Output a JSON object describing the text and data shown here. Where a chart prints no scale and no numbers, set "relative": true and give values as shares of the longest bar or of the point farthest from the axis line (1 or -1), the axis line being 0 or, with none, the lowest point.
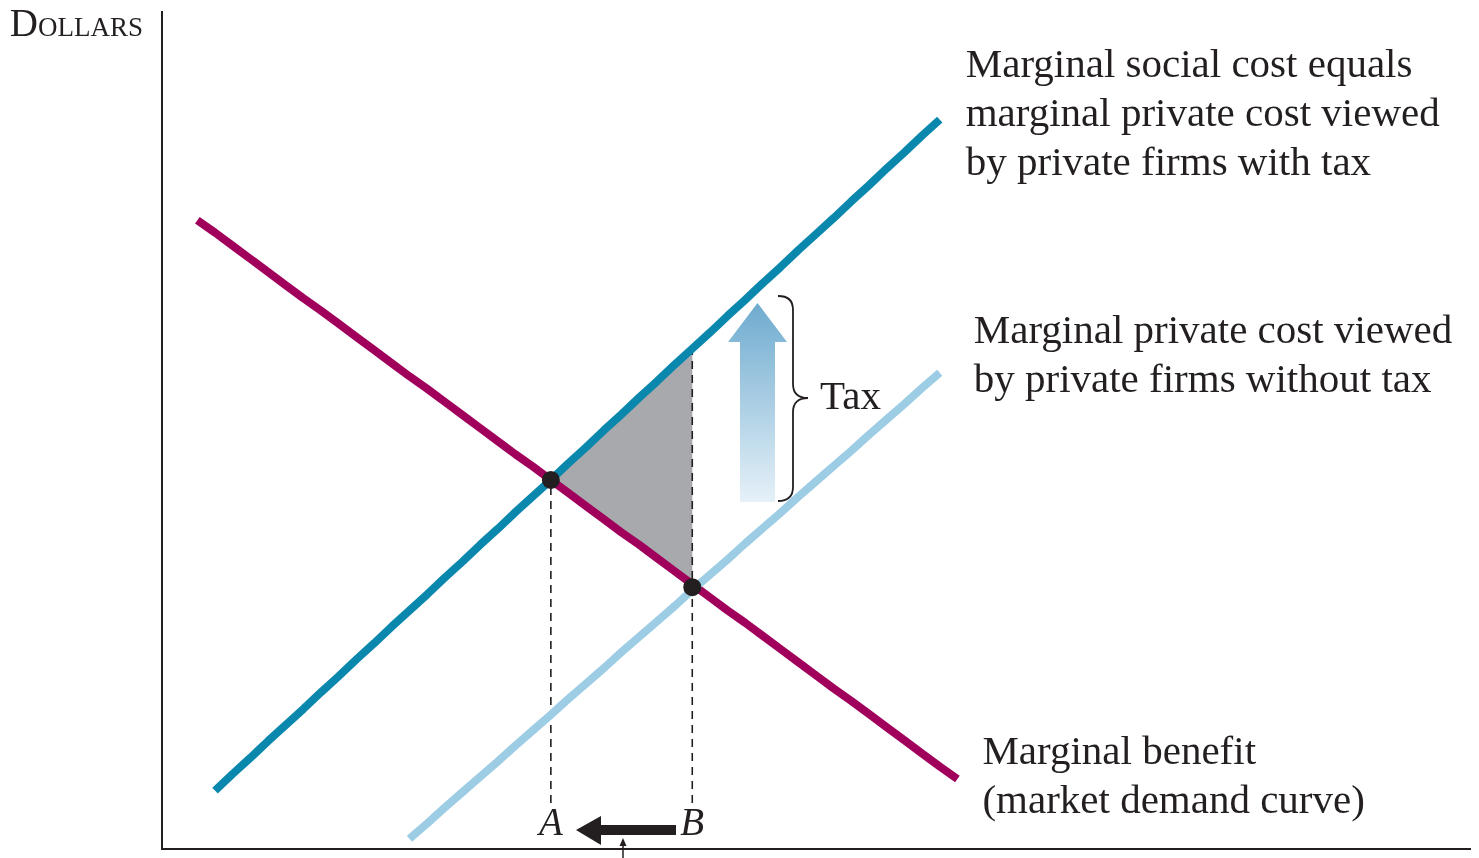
{
  "chart_data": {
    "type": "line",
    "relative": true,
    "ylabel": "Dollars",
    "tick_labels": "x",
    "categories": [
      null,
      null,
      null,
      null,
      null,
      null,
      null,
      null,
      null,
      null,
      null,
      null,
      null,
      null,
      null,
      null,
      null,
      null,
      null,
      null,
      null,
      null,
      "A",
      null,
      null,
      null,
      null,
      null,
      null,
      null,
      "B",
      null,
      null,
      null,
      null,
      null,
      null,
      null,
      null,
      null,
      null,
      null,
      null,
      null,
      null,
      null,
      null,
      null,
      null,
      null,
      null,
      null,
      null,
      null,
      null,
      null,
      null,
      null,
      null,
      null,
      null,
      null,
      null,
      null,
      null,
      null,
      null,
      null,
      null,
      null,
      null,
      null,
      null,
      null,
      null
    ],
    "series": [
      {
        "name": "Marginal social cost equals marginal private cost viewed by private firms with tax",
        "color": "#0a87ad",
        "values": [
          null,
          null,
          null,
          0.08,
          0.103,
          0.125,
          0.148,
          0.17,
          0.192,
          0.215,
          0.237,
          0.26,
          0.282,
          0.305,
          0.327,
          0.349,
          0.372,
          0.394,
          0.417,
          0.439,
          0.462,
          0.484,
          0.506,
          0.529,
          0.551,
          0.574,
          0.596,
          0.619,
          0.641,
          0.664,
          0.686,
          0.708,
          0.731,
          0.753,
          0.776,
          0.798,
          0.821,
          0.843,
          0.865,
          0.888,
          0.91,
          0.933,
          0.955,
          0.978,
          1,
          null,
          null,
          null,
          null,
          null,
          null,
          null,
          null,
          null,
          null,
          null,
          null,
          null,
          null,
          null,
          null,
          null,
          null,
          null,
          null,
          null,
          null,
          null,
          null,
          null,
          null,
          null,
          null,
          null,
          null
        ]
      },
      {
        "name": "Marginal private cost viewed by private firms without tax",
        "color": "#9dcde5",
        "values": [
          null,
          null,
          null,
          null,
          null,
          null,
          null,
          null,
          null,
          null,
          null,
          null,
          null,
          null,
          0.014,
          0.035,
          0.057,
          0.078,
          0.099,
          0.12,
          0.142,
          0.163,
          0.184,
          0.206,
          0.227,
          0.248,
          0.27,
          0.291,
          0.312,
          0.333,
          0.355,
          0.376,
          0.397,
          0.419,
          0.44,
          0.461,
          0.483,
          0.504,
          0.525,
          0.546,
          0.568,
          0.589,
          0.61,
          0.632,
          0.653,
          null,
          null,
          null,
          null,
          null,
          null,
          null,
          null,
          null,
          null,
          null,
          null,
          null,
          null,
          null,
          null,
          null,
          null,
          null,
          null,
          null,
          null,
          null,
          null,
          null,
          null,
          null,
          null,
          null,
          null
        ]
      },
      {
        "name": "Marginal benefit (market demand curve)",
        "color": "#a0005c",
        "values": [
          null,
          null,
          0.862,
          0.845,
          0.827,
          0.809,
          0.791,
          0.773,
          0.755,
          0.738,
          0.72,
          0.702,
          0.684,
          0.666,
          0.648,
          0.631,
          0.613,
          0.595,
          0.577,
          0.559,
          0.541,
          0.524,
          0.506,
          0.488,
          0.47,
          0.452,
          0.434,
          0.417,
          0.399,
          0.381,
          0.363,
          0.345,
          0.327,
          0.31,
          0.292,
          0.274,
          0.256,
          0.238,
          0.22,
          0.203,
          0.185,
          0.167,
          0.149,
          0.131,
          0.113,
          0.096,
          null,
          null,
          null,
          null,
          null,
          null,
          null,
          null,
          null,
          null,
          null,
          null,
          null,
          null,
          null,
          null,
          null,
          null,
          null,
          null,
          null,
          null,
          null,
          null,
          null,
          null,
          null,
          null,
          null
        ]
      },
      {
        "type": "scatter",
        "color": "#231f20",
        "marker": "circle",
        "values": [
          null,
          null,
          null,
          null,
          null,
          null,
          null,
          null,
          null,
          null,
          null,
          null,
          null,
          null,
          null,
          null,
          null,
          null,
          null,
          null,
          null,
          null,
          0.506,
          null,
          null,
          null,
          null,
          null,
          null,
          null,
          0.359,
          null,
          null,
          null,
          null,
          null,
          null,
          null,
          null,
          null,
          null,
          null,
          null,
          null,
          null,
          null,
          null,
          null,
          null,
          null,
          null,
          null,
          null,
          null,
          null,
          null,
          null,
          null,
          null,
          null,
          null,
          null,
          null,
          null,
          null,
          null,
          null,
          null,
          null,
          null,
          null,
          null,
          null,
          null,
          null
        ]
      }
    ],
    "ref_lines": [
      {
        "axis": "x",
        "value": "A",
        "line_style": "dashed",
        "color": "#231f20"
      },
      {
        "axis": "x",
        "value": "B",
        "line_style": "dashed",
        "color": "#231f20"
      }
    ],
    "annotations": [
      "Tax"
    ]
  }
}
